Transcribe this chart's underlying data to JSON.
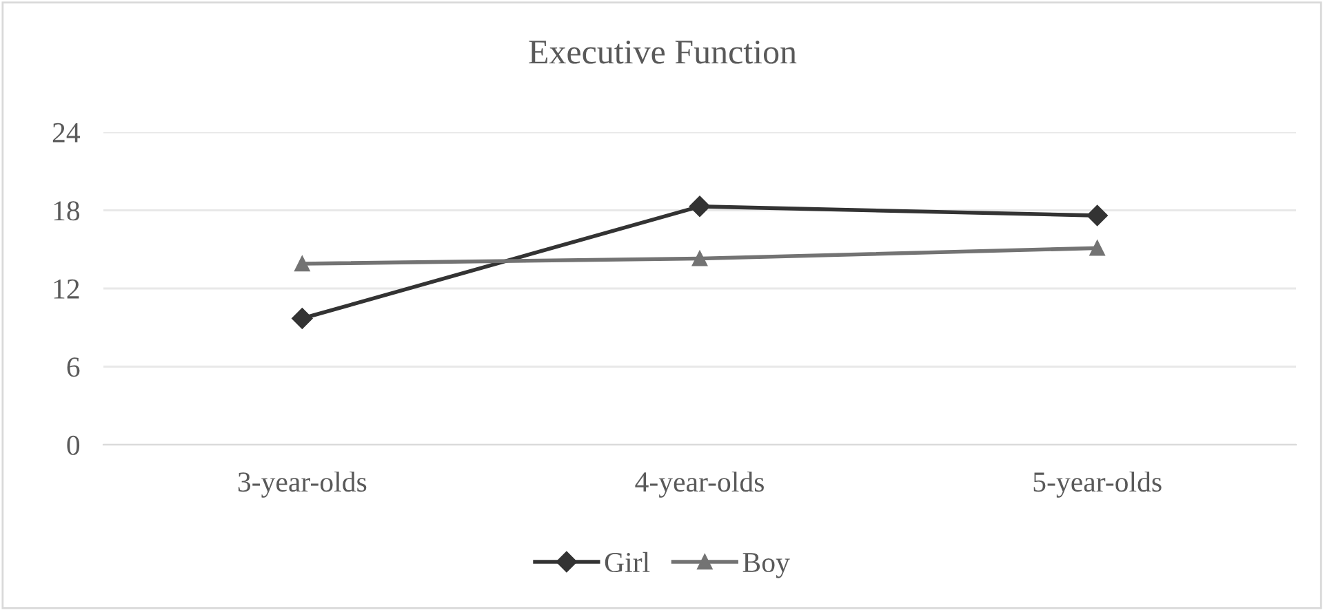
{
  "chart_data": {
    "type": "line",
    "title": "Executive Function",
    "categories": [
      "3-year-olds",
      "4-year-olds",
      "5-year-olds"
    ],
    "series": [
      {
        "name": "Girl",
        "color": "#333333",
        "values": [
          9.7,
          18.3,
          17.6
        ],
        "marker": "diamond"
      },
      {
        "name": "Boy",
        "color": "#737373",
        "values": [
          13.9,
          14.3,
          15.1
        ],
        "marker": "triangle"
      }
    ],
    "ylim": [
      0,
      24
    ],
    "yticks": [
      0,
      6,
      12,
      18,
      24
    ],
    "grid": "y",
    "legend": "bottom"
  }
}
